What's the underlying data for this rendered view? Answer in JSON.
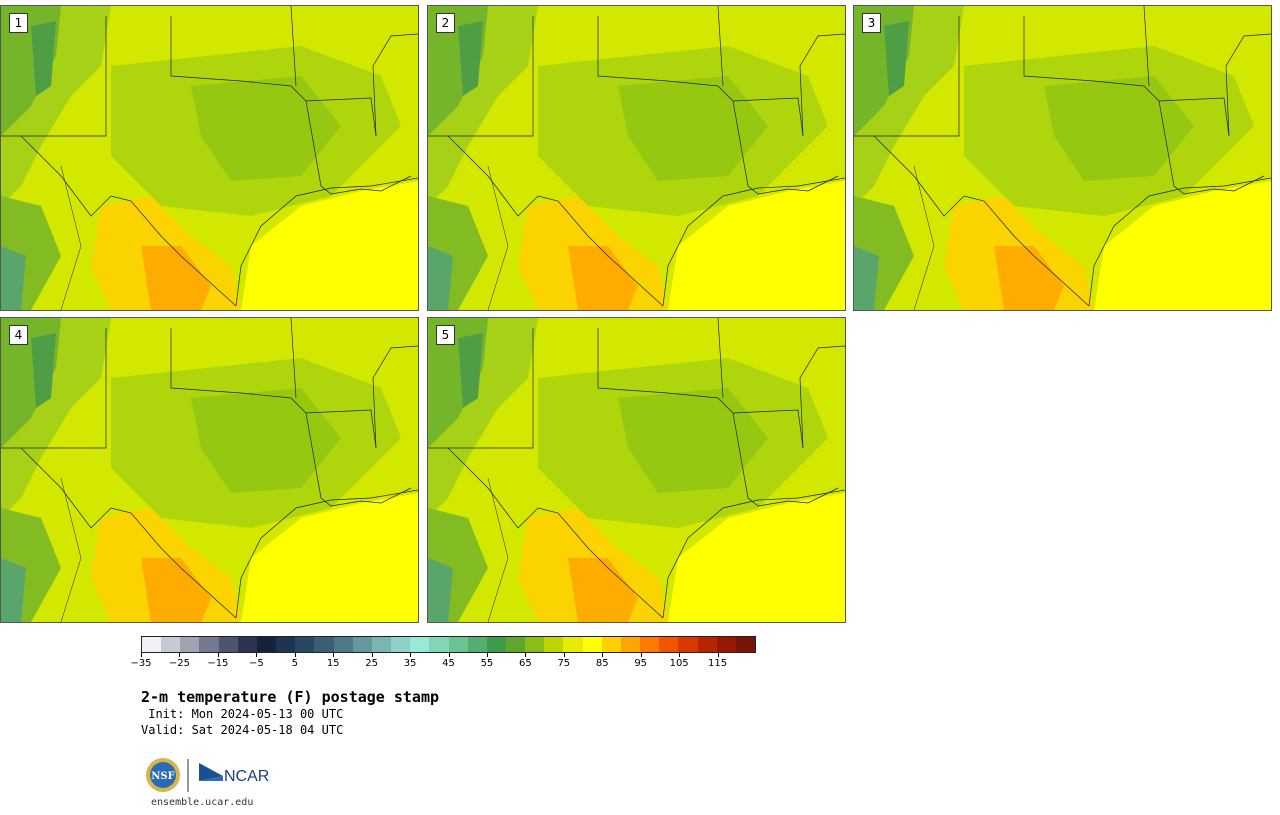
{
  "panels": [
    {
      "label": "1"
    },
    {
      "label": "2"
    },
    {
      "label": "3"
    },
    {
      "label": "4"
    },
    {
      "label": "5"
    }
  ],
  "colorbar": {
    "colors": [
      "#f0f2f5",
      "#c8cad3",
      "#9fa3b2",
      "#737a90",
      "#4c5570",
      "#2b3450",
      "#16223a",
      "#1d3452",
      "#2a4762",
      "#3a5e74",
      "#4d7a88",
      "#66969e",
      "#7ab4b3",
      "#8fd0c8",
      "#9ae8d8",
      "#82d6b4",
      "#6cc293",
      "#55ad72",
      "#3f9a4a",
      "#5da72d",
      "#8cbc16",
      "#c0d400",
      "#e8ec00",
      "#ffff00",
      "#ffd000",
      "#ffa500",
      "#ff7a00",
      "#f25500",
      "#d63a00",
      "#b82300",
      "#991600",
      "#781308"
    ],
    "tick_labels": [
      "−35",
      "−25",
      "−15",
      "−5",
      "5",
      "15",
      "25",
      "35",
      "45",
      "55",
      "65",
      "75",
      "85",
      "95",
      "105",
      "115"
    ]
  },
  "title": {
    "main": "2-m temperature (F) postage stamp",
    "init": " Init: Mon 2024-05-13 00 UTC",
    "valid": "Valid: Sat 2024-05-18 04 UTC"
  },
  "logos": {
    "nsf": "NSF",
    "ncar": "NCAR"
  },
  "footer": {
    "url": "ensemble.ucar.edu"
  }
}
